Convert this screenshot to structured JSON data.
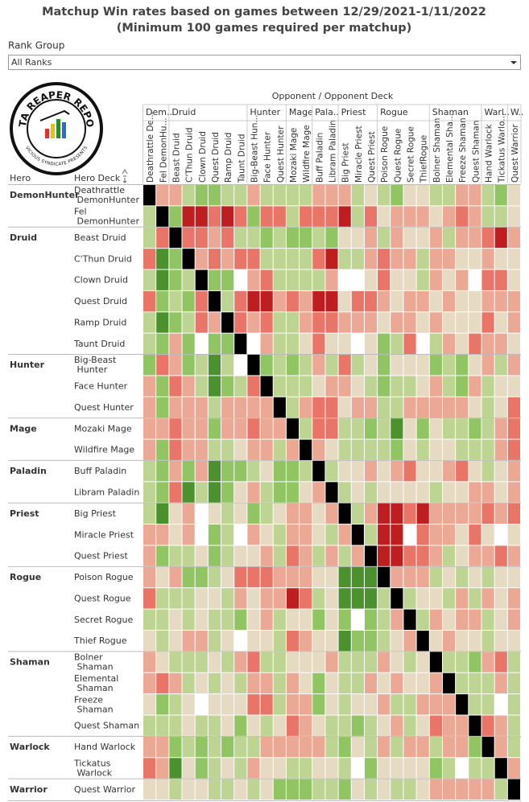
{
  "chart_data": {
    "type": "heatmap",
    "title": "Matchup Win rates based on games between 12/29/2021-1/11/2022",
    "subtitle": "(Minimum 100 games required per matchup)",
    "filter_label": "Rank Group",
    "filter_value": "All Ranks",
    "logo_title": "DATA REAPER REPORT",
    "logo_subtitle": "VICIOUS SYNDICATE PRESENTS",
    "column_axis_title": "Opponent / Opponent Deck",
    "row_header_hero": "Hero",
    "row_header_deck": "Hero Deck",
    "groups": [
      {
        "hero": "DemonHunter",
        "column_label": "Dem..",
        "decks": [
          "Deathrattle DemonHunter",
          "Fel DemonHunter"
        ],
        "column_decks": [
          "Deathrattle De...",
          "Fel DemonHu..."
        ]
      },
      {
        "hero": "Druid",
        "column_label": "Druid",
        "decks": [
          "Beast Druid",
          "C'Thun Druid",
          "Clown Druid",
          "Quest Druid",
          "Ramp Druid",
          "Taunt Druid"
        ],
        "column_decks": [
          "Beast Druid",
          "C'Thun Druid",
          "Clown Druid",
          "Quest Druid",
          "Ramp Druid",
          "Taunt Druid"
        ]
      },
      {
        "hero": "Hunter",
        "column_label": "Hunter",
        "decks": [
          "Big-Beast Hunter",
          "Face Hunter",
          "Quest Hunter"
        ],
        "column_decks": [
          "Big-Beast Hun...",
          "Face Hunter",
          "Quest Hunter"
        ]
      },
      {
        "hero": "Mage",
        "column_label": "Mage",
        "decks": [
          "Mozaki Mage",
          "Wildfire Mage"
        ],
        "column_decks": [
          "Mozaki Mage",
          "Wildfire Mage"
        ]
      },
      {
        "hero": "Paladin",
        "column_label": "Pala..",
        "decks": [
          "Buff Paladin",
          "Libram Paladin"
        ],
        "column_decks": [
          "Buff Paladin",
          "Libram Paladin"
        ]
      },
      {
        "hero": "Priest",
        "column_label": "Priest",
        "decks": [
          "Big Priest",
          "Miracle Priest",
          "Quest Priest"
        ],
        "column_decks": [
          "Big Priest",
          "Miracle Priest",
          "Quest Priest"
        ]
      },
      {
        "hero": "Rogue",
        "column_label": "Rogue",
        "decks": [
          "Poison Rogue",
          "Quest Rogue",
          "Secret Rogue",
          "Thief Rogue"
        ],
        "column_decks": [
          "Poison Rogue",
          "Quest Rogue",
          "Secret Rogue",
          "ThiefRogue"
        ]
      },
      {
        "hero": "Shaman",
        "column_label": "Shaman",
        "decks": [
          "Bolner Shaman",
          "Elemental Shaman",
          "Freeze Shaman",
          "Quest Shaman"
        ],
        "column_decks": [
          "Bolner Shaman",
          "Elemental Sha...",
          "Freeze Shaman",
          "Quest Shaman"
        ]
      },
      {
        "hero": "Warlock",
        "column_label": "Warl..",
        "decks": [
          "Hand Warlock",
          "Tickatus Warlock"
        ],
        "column_decks": [
          "Hand Warlock",
          "Tickatus Warlo..."
        ]
      },
      {
        "hero": "Warrior",
        "column_label": "W..",
        "decks": [
          "Quest Warrior"
        ],
        "column_decks": [
          "Quest Warrior"
        ]
      }
    ],
    "colorscale": [
      [
        35,
        "#b80f14"
      ],
      [
        43,
        "#ef8373"
      ],
      [
        50,
        "#e6dac2"
      ],
      [
        57,
        "#9fcf6f"
      ],
      [
        65,
        "#2f7d1a"
      ]
    ],
    "values": [
      [
        null,
        46,
        46,
        54,
        58,
        58,
        54,
        54,
        46,
        54,
        54,
        54,
        54,
        46,
        46,
        46,
        54,
        50,
        54,
        58,
        50,
        50,
        54,
        54,
        46,
        46,
        54,
        58,
        50
      ],
      [
        54,
        null,
        58,
        36,
        36,
        42,
        36,
        42,
        58,
        42,
        42,
        54,
        42,
        42,
        42,
        36,
        54,
        42,
        50,
        46,
        46,
        46,
        50,
        46,
        42,
        46,
        54,
        54,
        50
      ],
      [
        54,
        42,
        null,
        42,
        42,
        46,
        42,
        54,
        54,
        58,
        54,
        58,
        58,
        54,
        58,
        50,
        50,
        46,
        54,
        46,
        50,
        50,
        46,
        54,
        46,
        46,
        42,
        36,
        46
      ],
      [
        42,
        63,
        58,
        null,
        46,
        42,
        46,
        42,
        42,
        54,
        54,
        54,
        54,
        42,
        36,
        54,
        54,
        46,
        42,
        46,
        46,
        54,
        46,
        46,
        50,
        50,
        46,
        50,
        50
      ],
      [
        54,
        63,
        58,
        54,
        null,
        58,
        58,
        null,
        46,
        42,
        54,
        54,
        54,
        54,
        46,
        null,
        null,
        50,
        42,
        50,
        50,
        54,
        46,
        50,
        46,
        null,
        42,
        42,
        50
      ],
      [
        42,
        58,
        54,
        58,
        42,
        null,
        54,
        42,
        36,
        36,
        46,
        42,
        46,
        36,
        36,
        50,
        42,
        42,
        46,
        50,
        46,
        46,
        50,
        46,
        50,
        50,
        46,
        46,
        46
      ],
      [
        54,
        63,
        58,
        54,
        42,
        46,
        null,
        42,
        46,
        42,
        54,
        54,
        46,
        42,
        42,
        46,
        46,
        46,
        50,
        46,
        46,
        50,
        46,
        50,
        50,
        50,
        42,
        50,
        46
      ],
      [
        54,
        58,
        46,
        58,
        null,
        58,
        58,
        null,
        null,
        46,
        54,
        54,
        50,
        42,
        50,
        50,
        null,
        50,
        58,
        54,
        42,
        null,
        54,
        46,
        50,
        42,
        46,
        46,
        50
      ],
      [
        58,
        42,
        46,
        58,
        54,
        63,
        54,
        null,
        null,
        58,
        54,
        58,
        54,
        46,
        54,
        42,
        54,
        50,
        58,
        50,
        50,
        50,
        58,
        54,
        58,
        50,
        46,
        54,
        46
      ],
      [
        46,
        58,
        42,
        46,
        54,
        63,
        58,
        54,
        42,
        null,
        54,
        54,
        54,
        50,
        46,
        46,
        50,
        54,
        58,
        54,
        54,
        50,
        46,
        54,
        58,
        46,
        54,
        50,
        50
      ],
      [
        46,
        58,
        46,
        46,
        46,
        54,
        46,
        46,
        46,
        46,
        null,
        54,
        46,
        42,
        42,
        50,
        46,
        46,
        54,
        54,
        46,
        46,
        46,
        46,
        46,
        50,
        54,
        50,
        42
      ],
      [
        46,
        46,
        42,
        46,
        46,
        58,
        46,
        46,
        42,
        46,
        46,
        null,
        54,
        42,
        42,
        54,
        54,
        58,
        54,
        63,
        50,
        58,
        50,
        54,
        54,
        58,
        54,
        46,
        42
      ],
      [
        46,
        58,
        42,
        46,
        46,
        54,
        54,
        50,
        46,
        46,
        54,
        46,
        null,
        46,
        50,
        54,
        54,
        54,
        54,
        58,
        50,
        54,
        50,
        50,
        54,
        54,
        54,
        46,
        42
      ],
      [
        54,
        58,
        46,
        58,
        46,
        63,
        58,
        58,
        54,
        50,
        58,
        58,
        54,
        null,
        54,
        50,
        50,
        46,
        50,
        46,
        42,
        50,
        50,
        46,
        42,
        50,
        54,
        50,
        46
      ],
      [
        54,
        58,
        42,
        63,
        54,
        63,
        58,
        50,
        46,
        54,
        58,
        58,
        50,
        46,
        null,
        54,
        50,
        54,
        50,
        50,
        50,
        50,
        54,
        50,
        50,
        46,
        46,
        50,
        46
      ],
      [
        54,
        63,
        50,
        46,
        null,
        50,
        54,
        50,
        58,
        54,
        50,
        46,
        46,
        50,
        46,
        null,
        54,
        46,
        36,
        36,
        42,
        36,
        46,
        46,
        46,
        46,
        42,
        46,
        42
      ],
      [
        46,
        46,
        50,
        46,
        null,
        58,
        54,
        null,
        46,
        50,
        54,
        46,
        46,
        50,
        54,
        46,
        null,
        54,
        36,
        36,
        null,
        42,
        46,
        46,
        50,
        42,
        50,
        null,
        50
      ],
      [
        46,
        58,
        54,
        54,
        50,
        58,
        54,
        50,
        50,
        46,
        54,
        42,
        46,
        54,
        46,
        54,
        46,
        null,
        36,
        36,
        42,
        42,
        46,
        54,
        50,
        46,
        46,
        42,
        46
      ],
      [
        46,
        50,
        46,
        58,
        58,
        54,
        50,
        42,
        42,
        42,
        46,
        46,
        46,
        50,
        50,
        63,
        63,
        63,
        null,
        46,
        46,
        46,
        54,
        50,
        54,
        50,
        54,
        50,
        50
      ],
      [
        42,
        54,
        54,
        54,
        50,
        50,
        54,
        46,
        50,
        46,
        46,
        36,
        42,
        54,
        50,
        63,
        63,
        63,
        54,
        null,
        54,
        50,
        50,
        54,
        46,
        54,
        46,
        50,
        46
      ],
      [
        54,
        54,
        50,
        54,
        50,
        54,
        54,
        58,
        50,
        46,
        54,
        50,
        50,
        58,
        50,
        58,
        null,
        58,
        54,
        46,
        null,
        54,
        46,
        50,
        46,
        46,
        54,
        50,
        46
      ],
      [
        50,
        54,
        50,
        46,
        46,
        54,
        50,
        null,
        50,
        50,
        54,
        42,
        46,
        50,
        50,
        63,
        58,
        58,
        54,
        50,
        46,
        null,
        50,
        46,
        50,
        50,
        54,
        50,
        50
      ],
      [
        46,
        50,
        54,
        54,
        54,
        50,
        54,
        46,
        42,
        54,
        54,
        50,
        50,
        50,
        46,
        54,
        54,
        54,
        46,
        50,
        54,
        50,
        null,
        54,
        54,
        58,
        46,
        42,
        54
      ],
      [
        46,
        42,
        46,
        54,
        50,
        54,
        50,
        54,
        46,
        46,
        54,
        46,
        50,
        58,
        50,
        54,
        54,
        46,
        50,
        46,
        50,
        50,
        46,
        null,
        54,
        54,
        54,
        46,
        54
      ],
      [
        50,
        58,
        54,
        50,
        null,
        50,
        50,
        50,
        42,
        42,
        54,
        46,
        46,
        58,
        50,
        54,
        50,
        50,
        46,
        54,
        54,
        46,
        46,
        46,
        null,
        54,
        54,
        null,
        54
      ],
      [
        54,
        54,
        54,
        50,
        54,
        54,
        50,
        58,
        50,
        54,
        50,
        42,
        46,
        50,
        54,
        54,
        58,
        54,
        50,
        46,
        54,
        50,
        42,
        46,
        46,
        null,
        42,
        46,
        54
      ],
      [
        46,
        46,
        58,
        54,
        58,
        54,
        58,
        54,
        54,
        46,
        46,
        46,
        46,
        46,
        54,
        58,
        50,
        54,
        46,
        54,
        46,
        46,
        54,
        46,
        46,
        58,
        null,
        46,
        54
      ],
      [
        42,
        46,
        63,
        50,
        58,
        54,
        50,
        54,
        46,
        50,
        50,
        54,
        54,
        50,
        50,
        54,
        null,
        58,
        50,
        50,
        50,
        50,
        58,
        54,
        null,
        54,
        54,
        null,
        46
      ],
      [
        50,
        50,
        54,
        50,
        50,
        54,
        54,
        50,
        54,
        50,
        58,
        58,
        58,
        54,
        54,
        58,
        50,
        54,
        50,
        54,
        54,
        50,
        46,
        46,
        46,
        46,
        46,
        54,
        null
      ]
    ]
  }
}
